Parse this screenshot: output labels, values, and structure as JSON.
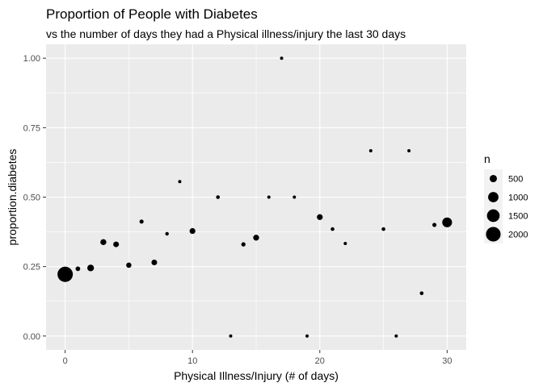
{
  "chart_data": {
    "type": "scatter",
    "title": "Proportion of People with Diabetes",
    "subtitle": "vs the number of days they had a Physical illness/injury the last 30 days",
    "xlabel": "Physical Illness/Injury (# of days)",
    "ylabel": "proportion.diabetes",
    "xlim": [
      -1.5,
      31.5
    ],
    "ylim": [
      -0.05,
      1.05
    ],
    "x_ticks": [
      0,
      10,
      20,
      30
    ],
    "x_tick_labels": [
      "0",
      "10",
      "20",
      "30"
    ],
    "y_ticks": [
      0,
      0.25,
      0.5,
      0.75,
      1.0
    ],
    "y_tick_labels": [
      "0.00",
      "0.25",
      "0.50",
      "0.75",
      "1.00"
    ],
    "grid": true,
    "legend": {
      "title": "n",
      "position": "right",
      "entries": [
        {
          "label": "500",
          "value": 500
        },
        {
          "label": "1000",
          "value": 1000
        },
        {
          "label": "1500",
          "value": 1500
        },
        {
          "label": "2000",
          "value": 2000
        }
      ]
    },
    "point_color": "#000000",
    "panel_color": "#ebebeb",
    "points": [
      {
        "x": 0,
        "y": 0.222,
        "n": 2200
      },
      {
        "x": 1,
        "y": 0.242,
        "n": 200
      },
      {
        "x": 2,
        "y": 0.245,
        "n": 420
      },
      {
        "x": 3,
        "y": 0.338,
        "n": 330
      },
      {
        "x": 4,
        "y": 0.33,
        "n": 300
      },
      {
        "x": 5,
        "y": 0.255,
        "n": 260
      },
      {
        "x": 6,
        "y": 0.412,
        "n": 160
      },
      {
        "x": 7,
        "y": 0.265,
        "n": 300
      },
      {
        "x": 8,
        "y": 0.368,
        "n": 120
      },
      {
        "x": 9,
        "y": 0.556,
        "n": 90
      },
      {
        "x": 10,
        "y": 0.378,
        "n": 320
      },
      {
        "x": 12,
        "y": 0.5,
        "n": 130
      },
      {
        "x": 13,
        "y": 0.0,
        "n": 20
      },
      {
        "x": 14,
        "y": 0.33,
        "n": 170
      },
      {
        "x": 15,
        "y": 0.354,
        "n": 330
      },
      {
        "x": 16,
        "y": 0.5,
        "n": 40
      },
      {
        "x": 17,
        "y": 1.0,
        "n": 20
      },
      {
        "x": 18,
        "y": 0.5,
        "n": 40
      },
      {
        "x": 19,
        "y": 0.0,
        "n": 20
      },
      {
        "x": 20,
        "y": 0.428,
        "n": 320
      },
      {
        "x": 21,
        "y": 0.385,
        "n": 130
      },
      {
        "x": 22,
        "y": 0.333,
        "n": 30
      },
      {
        "x": 24,
        "y": 0.667,
        "n": 40
      },
      {
        "x": 25,
        "y": 0.385,
        "n": 130
      },
      {
        "x": 26,
        "y": 0.0,
        "n": 20
      },
      {
        "x": 27,
        "y": 0.667,
        "n": 40
      },
      {
        "x": 28,
        "y": 0.154,
        "n": 130
      },
      {
        "x": 29,
        "y": 0.4,
        "n": 160
      },
      {
        "x": 30,
        "y": 0.409,
        "n": 900
      }
    ]
  }
}
